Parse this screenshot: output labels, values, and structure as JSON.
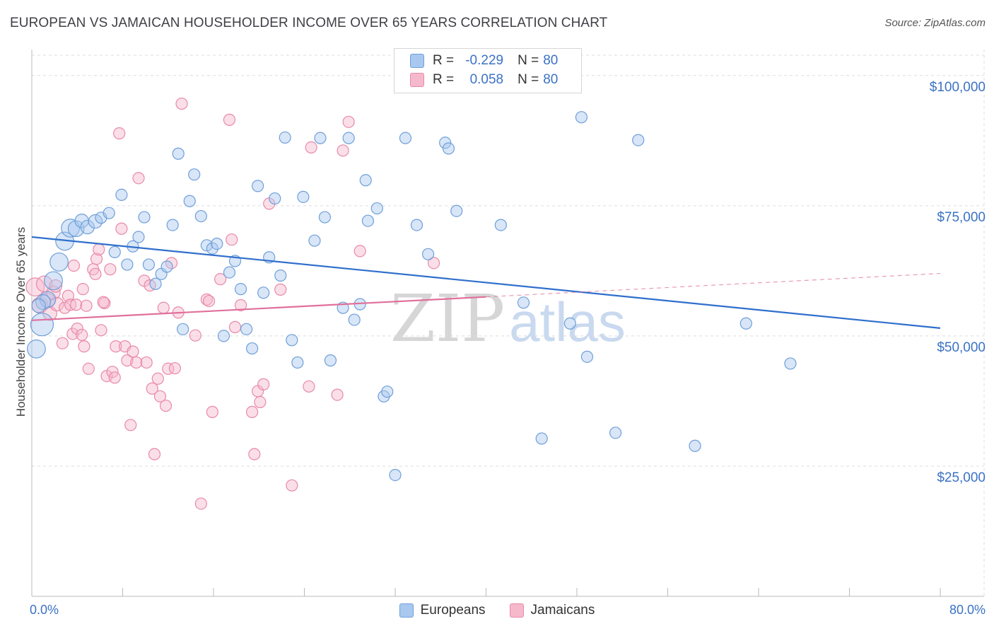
{
  "title": "EUROPEAN VS JAMAICAN HOUSEHOLDER INCOME OVER 65 YEARS CORRELATION CHART",
  "source": "Source: ZipAtlas.com",
  "watermark": {
    "part1": "ZIP",
    "part2": "atlas"
  },
  "legend_stats": {
    "r_label": "R =",
    "n_label": "N =",
    "series": [
      {
        "r": "-0.229",
        "n": "80"
      },
      {
        "r": "0.058",
        "n": "80"
      }
    ]
  },
  "bottom_legend": [
    "Europeans",
    "Jamaicans"
  ],
  "colors": {
    "european_fill": "#a9c8f0",
    "european_stroke": "#6f9fd8",
    "european_line": "#2f6fcc",
    "jamaican_fill": "#f6b9cc",
    "jamaican_stroke": "#e889a8",
    "jamaican_line": "#e0709a",
    "axis_text": "#3b72c4",
    "grid": "#dddddd"
  },
  "chart_data": {
    "type": "scatter",
    "title": "EUROPEAN VS JAMAICAN HOUSEHOLDER INCOME OVER 65 YEARS CORRELATION CHART",
    "xlabel": "",
    "ylabel": "Householder Income Over 65 years",
    "xlim": [
      0,
      80
    ],
    "ylim": [
      0,
      105000
    ],
    "x_tick_labels": [
      "0.0%",
      "80.0%"
    ],
    "y_ticks": [
      {
        "value": 25000,
        "label": "$25,000"
      },
      {
        "value": 50000,
        "label": "$50,000"
      },
      {
        "value": 75000,
        "label": "$75,000"
      },
      {
        "value": 100000,
        "label": "$100,000"
      }
    ],
    "grid": true,
    "legend_position": "top-center",
    "series": [
      {
        "name": "Europeans",
        "r": -0.229,
        "n": 80,
        "trend": {
          "x": [
            0,
            80
          ],
          "y": [
            69000,
            51500
          ],
          "dashed_from": null
        },
        "points": [
          [
            0.4,
            47500,
            1.6
          ],
          [
            0.9,
            52200,
            2.0
          ],
          [
            1.4,
            57000,
            1.4
          ],
          [
            1.9,
            60600,
            1.6
          ],
          [
            2.4,
            64200,
            1.6
          ],
          [
            2.9,
            68200,
            1.6
          ],
          [
            3.4,
            70700,
            1.6
          ],
          [
            3.9,
            70600,
            1.4
          ],
          [
            4.4,
            72100,
            1.2
          ],
          [
            4.9,
            70900,
            1.2
          ],
          [
            5.6,
            72000,
            1.2
          ],
          [
            6.1,
            72700,
            1.0
          ],
          [
            6.8,
            73600,
            1.0
          ],
          [
            7.3,
            66100,
            1.0
          ],
          [
            7.9,
            77100,
            1.0
          ],
          [
            8.4,
            63700,
            1.0
          ],
          [
            8.9,
            67200,
            1.0
          ],
          [
            9.4,
            69000,
            1.0
          ],
          [
            9.9,
            72800,
            1.0
          ],
          [
            10.3,
            63700,
            1.0
          ],
          [
            10.9,
            60000,
            1.0
          ],
          [
            11.4,
            61900,
            1.0
          ],
          [
            11.9,
            63300,
            1.0
          ],
          [
            12.4,
            71300,
            1.0
          ],
          [
            12.9,
            85000,
            1.0
          ],
          [
            13.3,
            51300,
            1.0
          ],
          [
            13.9,
            75900,
            1.0
          ],
          [
            14.3,
            81000,
            1.0
          ],
          [
            14.9,
            73000,
            1.0
          ],
          [
            15.4,
            67400,
            1.0
          ],
          [
            15.9,
            66800,
            1.0
          ],
          [
            16.3,
            67700,
            1.0
          ],
          [
            16.9,
            50000,
            1.0
          ],
          [
            17.4,
            62200,
            1.0
          ],
          [
            17.9,
            64400,
            1.0
          ],
          [
            18.4,
            59000,
            1.0
          ],
          [
            18.9,
            51300,
            1.0
          ],
          [
            19.4,
            47600,
            1.0
          ],
          [
            19.9,
            78800,
            1.0
          ],
          [
            20.4,
            58300,
            1.0
          ],
          [
            20.9,
            65100,
            1.0
          ],
          [
            21.4,
            76400,
            1.0
          ],
          [
            21.9,
            61600,
            1.0
          ],
          [
            22.3,
            88100,
            1.0
          ],
          [
            22.9,
            49200,
            1.0
          ],
          [
            23.4,
            44900,
            1.0
          ],
          [
            23.9,
            76700,
            1.0
          ],
          [
            24.9,
            68300,
            1.0
          ],
          [
            25.4,
            88000,
            1.0
          ],
          [
            25.8,
            72800,
            1.0
          ],
          [
            26.3,
            45300,
            1.0
          ],
          [
            27.4,
            55400,
            1.0
          ],
          [
            27.9,
            88000,
            1.0
          ],
          [
            28.4,
            53100,
            1.0
          ],
          [
            28.9,
            56100,
            1.0
          ],
          [
            29.4,
            79900,
            1.0
          ],
          [
            29.6,
            72100,
            1.0
          ],
          [
            30.4,
            74500,
            1.0
          ],
          [
            31.0,
            38400,
            1.0
          ],
          [
            31.3,
            39300,
            1.0
          ],
          [
            32.0,
            23300,
            1.0
          ],
          [
            32.9,
            88000,
            1.0
          ],
          [
            33.9,
            71300,
            1.0
          ],
          [
            34.9,
            65700,
            1.0
          ],
          [
            36.4,
            87100,
            1.0
          ],
          [
            36.7,
            86000,
            1.0
          ],
          [
            37.4,
            74000,
            1.0
          ],
          [
            41.3,
            71300,
            1.0
          ],
          [
            43.3,
            56400,
            1.0
          ],
          [
            44.9,
            30300,
            1.0
          ],
          [
            47.4,
            52400,
            1.0
          ],
          [
            48.4,
            92000,
            1.0
          ],
          [
            48.9,
            46000,
            1.0
          ],
          [
            51.4,
            31400,
            1.0
          ],
          [
            53.4,
            87600,
            1.0
          ],
          [
            58.4,
            28900,
            1.0
          ],
          [
            62.9,
            52400,
            1.0
          ],
          [
            66.8,
            44700,
            1.0
          ],
          [
            1.0,
            56500,
            1.3
          ],
          [
            0.6,
            55800,
            1.2
          ]
        ]
      },
      {
        "name": "Jamaicans",
        "r": 0.058,
        "n": 80,
        "trend": {
          "x": [
            0,
            40,
            80
          ],
          "y": [
            53000,
            57500,
            62000
          ],
          "dashed_from": 40
        },
        "points": [
          [
            0.3,
            59400,
            1.6
          ],
          [
            0.7,
            55900,
            1.4
          ],
          [
            1.1,
            60000,
            1.4
          ],
          [
            1.4,
            56800,
            1.3
          ],
          [
            1.6,
            54300,
            1.2
          ],
          [
            1.9,
            58300,
            1.2
          ],
          [
            2.2,
            56100,
            1.2
          ],
          [
            2.7,
            48600,
            1.0
          ],
          [
            2.9,
            55400,
            1.0
          ],
          [
            3.2,
            57700,
            1.0
          ],
          [
            3.4,
            56000,
            1.0
          ],
          [
            3.6,
            50400,
            1.0
          ],
          [
            3.7,
            63500,
            1.0
          ],
          [
            3.9,
            56000,
            1.0
          ],
          [
            4.0,
            51400,
            1.0
          ],
          [
            4.4,
            50200,
            1.0
          ],
          [
            4.6,
            48000,
            1.0
          ],
          [
            4.8,
            55800,
            1.0
          ],
          [
            5.0,
            43700,
            1.0
          ],
          [
            5.4,
            62800,
            1.0
          ],
          [
            5.6,
            61900,
            1.0
          ],
          [
            5.7,
            64800,
            1.0
          ],
          [
            5.9,
            66600,
            1.0
          ],
          [
            6.1,
            51100,
            1.0
          ],
          [
            6.4,
            56300,
            1.0
          ],
          [
            6.6,
            42300,
            1.0
          ],
          [
            6.9,
            62800,
            1.0
          ],
          [
            7.1,
            43100,
            1.0
          ],
          [
            7.3,
            42000,
            1.0
          ],
          [
            7.4,
            48000,
            1.0
          ],
          [
            7.7,
            88900,
            1.0
          ],
          [
            7.9,
            70600,
            1.0
          ],
          [
            8.2,
            48000,
            1.0
          ],
          [
            8.4,
            45300,
            1.0
          ],
          [
            8.7,
            32900,
            1.0
          ],
          [
            8.9,
            47000,
            1.0
          ],
          [
            9.2,
            44900,
            1.0
          ],
          [
            9.4,
            80300,
            1.0
          ],
          [
            9.9,
            60600,
            1.0
          ],
          [
            10.1,
            44900,
            1.0
          ],
          [
            10.4,
            59700,
            1.0
          ],
          [
            10.6,
            39900,
            1.0
          ],
          [
            10.8,
            27300,
            1.0
          ],
          [
            11.1,
            41800,
            1.0
          ],
          [
            11.3,
            38400,
            1.0
          ],
          [
            11.6,
            55400,
            1.0
          ],
          [
            11.8,
            36600,
            1.0
          ],
          [
            12.0,
            43700,
            1.0
          ],
          [
            12.3,
            64000,
            1.0
          ],
          [
            12.6,
            43800,
            1.0
          ],
          [
            12.9,
            54500,
            1.0
          ],
          [
            13.2,
            94600,
            1.0
          ],
          [
            14.4,
            50100,
            1.0
          ],
          [
            14.9,
            17800,
            1.0
          ],
          [
            15.4,
            57000,
            1.0
          ],
          [
            15.6,
            56700,
            1.0
          ],
          [
            15.9,
            35400,
            1.0
          ],
          [
            16.6,
            60900,
            1.0
          ],
          [
            17.4,
            91500,
            1.0
          ],
          [
            17.6,
            68500,
            1.0
          ],
          [
            17.9,
            51700,
            1.0
          ],
          [
            18.4,
            55900,
            1.0
          ],
          [
            19.4,
            35400,
            1.0
          ],
          [
            19.6,
            27300,
            1.0
          ],
          [
            19.9,
            39400,
            1.0
          ],
          [
            20.1,
            37300,
            1.0
          ],
          [
            20.4,
            40700,
            1.0
          ],
          [
            20.9,
            75400,
            1.0
          ],
          [
            21.9,
            58900,
            1.0
          ],
          [
            22.9,
            21300,
            1.0
          ],
          [
            24.4,
            40300,
            1.0
          ],
          [
            24.6,
            86200,
            1.0
          ],
          [
            26.9,
            38700,
            1.0
          ],
          [
            27.4,
            85600,
            1.0
          ],
          [
            27.9,
            91100,
            1.0
          ],
          [
            28.9,
            66300,
            1.0
          ],
          [
            35.4,
            64000,
            1.0
          ],
          [
            2.1,
            59600,
            1.1
          ],
          [
            4.5,
            59000,
            1.0
          ],
          [
            6.3,
            56500,
            1.0
          ]
        ]
      }
    ]
  }
}
